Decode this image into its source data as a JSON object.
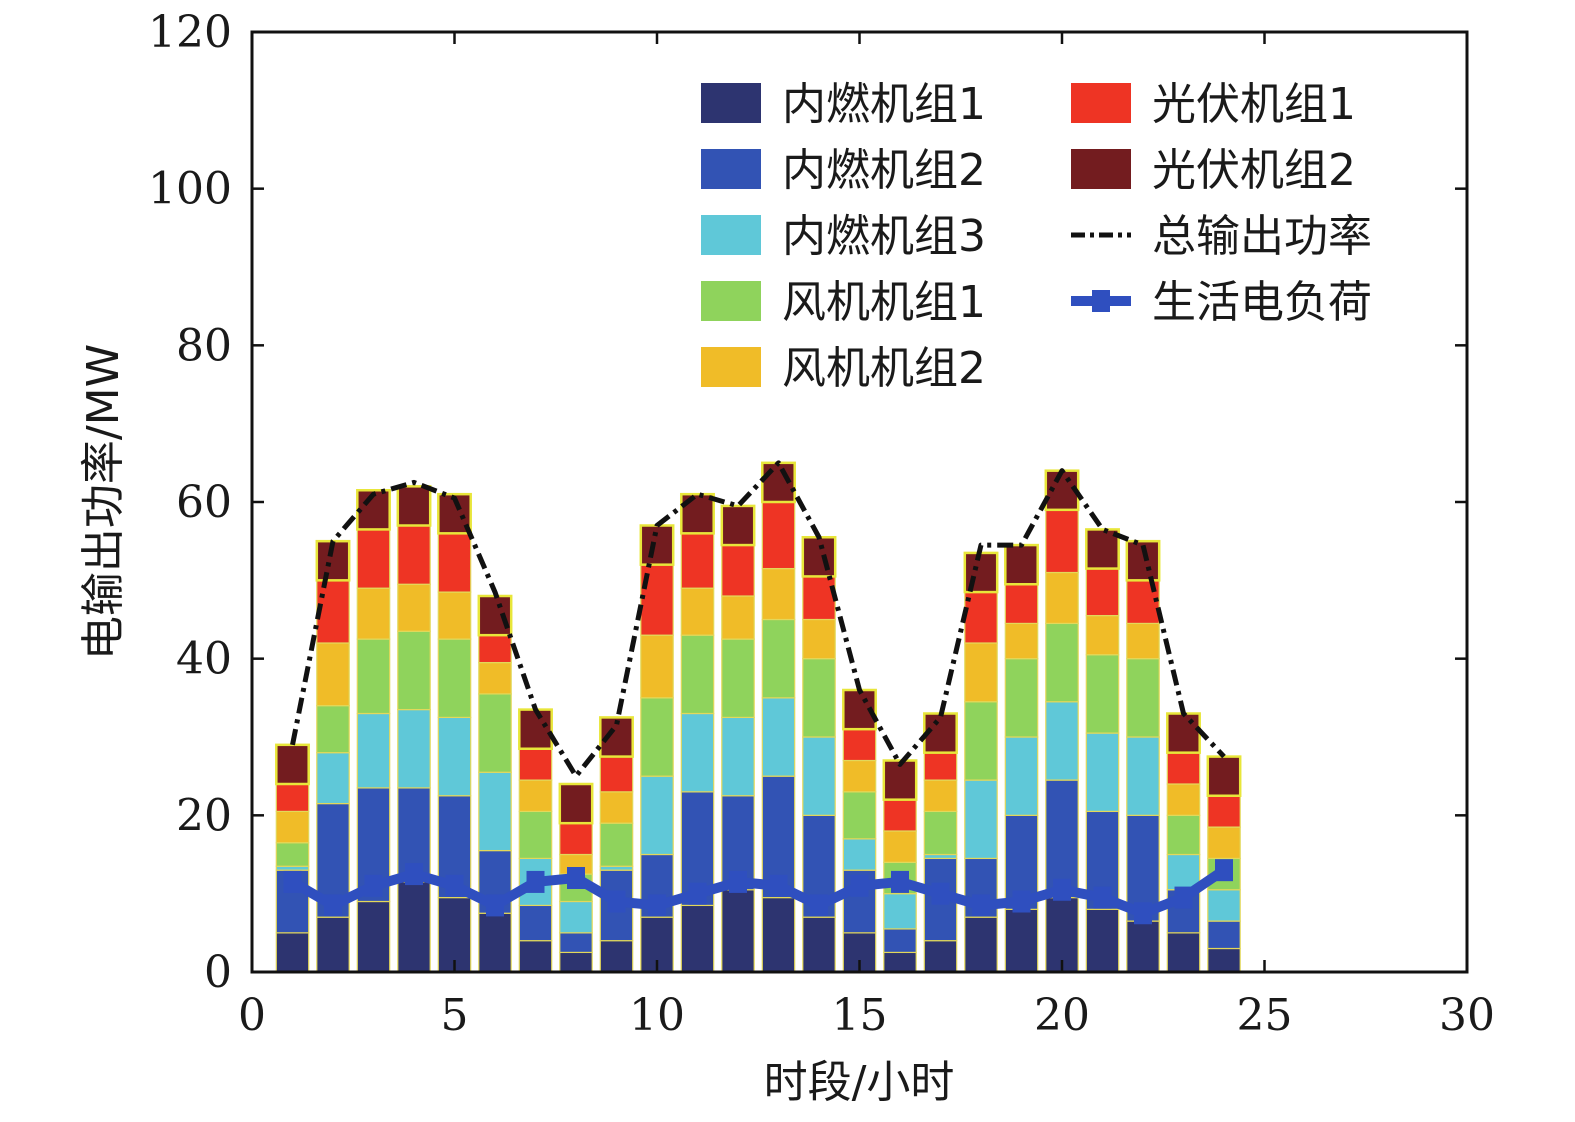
{
  "chart_data": {
    "type": "bar",
    "stacked": true,
    "xlabel": "时段/小时",
    "ylabel": "电输出功率/MW",
    "xlim": [
      0,
      30
    ],
    "ylim": [
      0,
      120
    ],
    "xticks": [
      0,
      5,
      10,
      15,
      20,
      25,
      30
    ],
    "yticks": [
      0,
      20,
      40,
      60,
      80,
      100,
      120
    ],
    "grid": false,
    "legend_position": "top-right",
    "x": [
      1,
      2,
      3,
      4,
      5,
      6,
      7,
      8,
      9,
      10,
      11,
      12,
      13,
      14,
      15,
      16,
      17,
      18,
      19,
      20,
      21,
      22,
      23,
      24
    ],
    "series": [
      {
        "name": "内燃机组1",
        "color": "#2d3470",
        "values": [
          5,
          7,
          9,
          11.5,
          9.5,
          7.5,
          4,
          2.5,
          4,
          7,
          8.5,
          10.5,
          9.5,
          7,
          5,
          2.5,
          4,
          7,
          8,
          9.5,
          8,
          6.5,
          5,
          3
        ]
      },
      {
        "name": "内燃机组2",
        "color": "#3253b4",
        "values": [
          8,
          14.5,
          14.5,
          12,
          13,
          8,
          4.5,
          2.5,
          9,
          8,
          14.5,
          12,
          15.5,
          13,
          8,
          3,
          10.5,
          7.5,
          12,
          15,
          12.5,
          13.5,
          5.5,
          3.5
        ]
      },
      {
        "name": "内燃机组3",
        "color": "#5fc8d8",
        "values": [
          0.5,
          6.5,
          9.5,
          10,
          10,
          10,
          6,
          4,
          0.5,
          10,
          10,
          10,
          10,
          10,
          4,
          4.5,
          0.5,
          10,
          10,
          10,
          10,
          10,
          4.5,
          4
        ]
      },
      {
        "name": "风机机组1",
        "color": "#8fd35c",
        "values": [
          3,
          6,
          9.5,
          10,
          10,
          10,
          6,
          3.5,
          5.5,
          10,
          10,
          10,
          10,
          10,
          6,
          4,
          5.5,
          10,
          10,
          10,
          10,
          10,
          5,
          4
        ]
      },
      {
        "name": "风机机组2",
        "color": "#f0bc28",
        "values": [
          4,
          8,
          6.5,
          6,
          6,
          4,
          4,
          2.5,
          4,
          8,
          6,
          5.5,
          6.5,
          5,
          4,
          4,
          4,
          7.5,
          4.5,
          6.5,
          5,
          4.5,
          4,
          4
        ]
      },
      {
        "name": "光伏机组1",
        "color": "#ee3424",
        "values": [
          3.5,
          8,
          7.5,
          7.5,
          7.5,
          3.5,
          4,
          4,
          4.5,
          9,
          7,
          6.5,
          8.5,
          5.5,
          4,
          4,
          3.5,
          6.5,
          5,
          8,
          6,
          5.5,
          4,
          4
        ]
      },
      {
        "name": "光伏机组2",
        "color": "#731c1f",
        "values": [
          5,
          5,
          5,
          5,
          5,
          5,
          5,
          5,
          5,
          5,
          5,
          5,
          5,
          5,
          5,
          5,
          5,
          5,
          5,
          5,
          5,
          5,
          5,
          5
        ]
      }
    ],
    "lines": [
      {
        "name": "总输出功率",
        "style": "dash-dot",
        "color": "#111111",
        "values": [
          29,
          55,
          61,
          62.5,
          60.5,
          48.5,
          33.5,
          25,
          31.5,
          57,
          61,
          59.5,
          65,
          55.5,
          36,
          26.5,
          32.5,
          54.5,
          54.5,
          64,
          56.5,
          54.5,
          33,
          27.5
        ]
      },
      {
        "name": "生活电负荷",
        "style": "solid-marker",
        "color": "#2f4fbf",
        "values": [
          11.5,
          8.5,
          11,
          12.5,
          11,
          8.5,
          11.5,
          12,
          9,
          8.5,
          10,
          11.5,
          11,
          8.5,
          11,
          11.5,
          10,
          8.5,
          9,
          10.5,
          9.5,
          7.5,
          9.5,
          13
        ]
      }
    ]
  }
}
